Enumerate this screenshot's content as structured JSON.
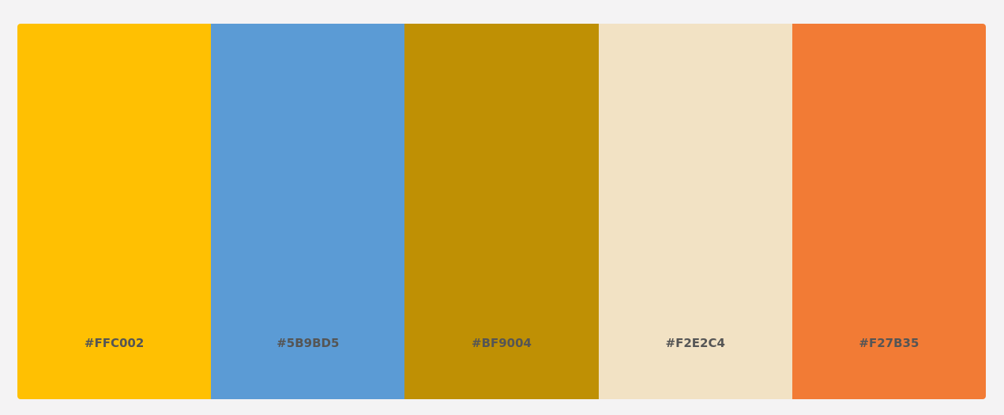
{
  "palette": {
    "swatches": [
      {
        "hex_label": "#FFC002",
        "color": "#FFC002"
      },
      {
        "hex_label": "#5B9BD5",
        "color": "#5B9BD5"
      },
      {
        "hex_label": "#BF9004",
        "color": "#BF9004"
      },
      {
        "hex_label": "#F2E2C4",
        "color": "#F2E2C4"
      },
      {
        "hex_label": "#F27B35",
        "color": "#F27B35"
      }
    ]
  }
}
